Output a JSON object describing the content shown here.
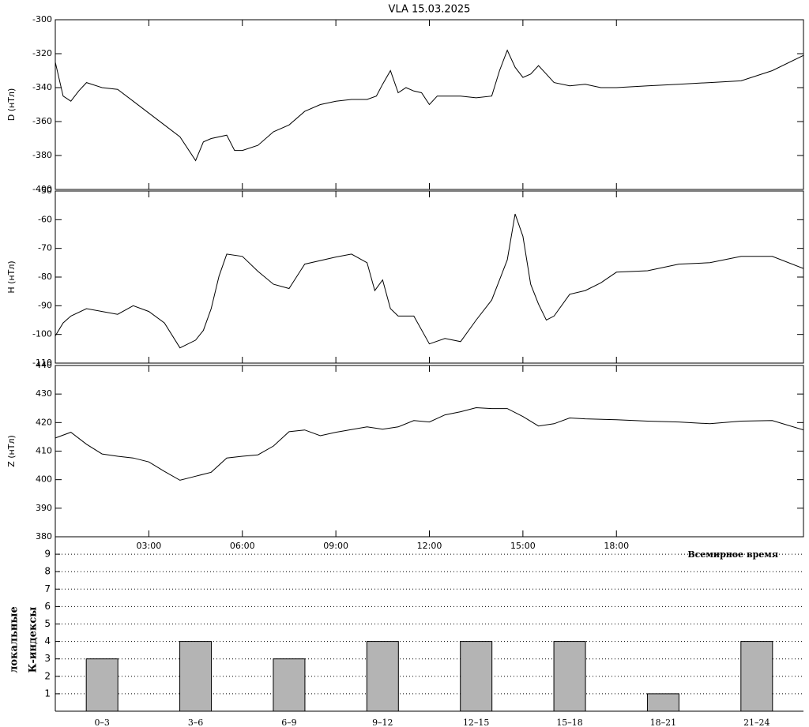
{
  "chart_data": [
    {
      "type": "line",
      "title": "VLA   15.03.2025",
      "ylabel": "D (нТл)",
      "x": [
        0,
        0.25,
        0.5,
        0.75,
        1,
        1.5,
        2,
        2.5,
        3,
        3.5,
        4,
        4.5,
        4.75,
        5,
        5.5,
        5.75,
        6,
        6.5,
        7,
        7.5,
        8,
        8.5,
        9,
        9.5,
        10,
        10.3,
        10.5,
        10.75,
        11,
        11.25,
        11.5,
        11.75,
        12,
        12.25,
        13,
        13.5,
        14,
        14.25,
        14.5,
        14.75,
        15,
        15.25,
        15.5,
        15.75,
        16,
        16.5,
        17,
        17.5,
        18,
        19,
        20,
        21,
        22,
        23,
        24
      ],
      "values": [
        -325,
        -345,
        -348,
        -342,
        -337,
        -340,
        -341,
        -348,
        -355,
        -362,
        -369,
        -383,
        -372,
        -370,
        -368,
        -377,
        -377,
        -374,
        -366,
        -362,
        -354,
        -350,
        -348,
        -347,
        -347,
        -345,
        -338,
        -330,
        -343,
        -340,
        -342,
        -343,
        -350,
        -345,
        -345,
        -346,
        -345,
        -330,
        -318,
        -328,
        -334,
        -332,
        -327,
        -332,
        -337,
        -339,
        -338,
        -340,
        -340,
        -339,
        -338,
        -337,
        -336,
        -330,
        -321
      ],
      "color": "#000000",
      "xlim": [
        0,
        24
      ],
      "ylim": [
        -400,
        -300
      ],
      "yticks": [
        -400,
        -380,
        -360,
        -340,
        -320,
        -300
      ]
    },
    {
      "type": "line",
      "ylabel": "H (нТл)",
      "x": [
        0,
        0.25,
        0.5,
        1,
        1.5,
        2,
        2.5,
        3,
        3.5,
        4,
        4.5,
        4.75,
        5,
        5.25,
        5.5,
        6,
        6.5,
        7,
        7.5,
        8,
        9,
        9.5,
        10,
        10.25,
        10.5,
        10.75,
        11,
        11.5,
        12,
        12.5,
        13,
        13.5,
        14,
        14.5,
        14.75,
        15,
        15.25,
        15.5,
        15.75,
        16,
        16.5,
        17,
        17.5,
        18,
        19,
        20,
        21,
        22,
        23,
        24
      ],
      "values": [
        -100.5,
        -96,
        -93.6,
        -91,
        -92,
        -93,
        -90,
        -92,
        -96,
        -104.7,
        -102,
        -98.6,
        -91,
        -79.7,
        -72,
        -72.8,
        -78,
        -82.5,
        -84,
        -75.5,
        -73,
        -72,
        -75,
        -84.7,
        -81,
        -91,
        -93.6,
        -93.6,
        -103.3,
        -101.4,
        -102.5,
        -95,
        -88,
        -74,
        -58,
        -65.8,
        -82.5,
        -89.4,
        -95,
        -93.6,
        -86,
        -84.7,
        -82,
        -78.3,
        -77.8,
        -75.5,
        -75,
        -72.8,
        -72.8,
        -77
      ],
      "color": "#000000",
      "xlim": [
        0,
        24
      ],
      "ylim": [
        -110,
        -50
      ],
      "yticks": [
        -110,
        -100,
        -90,
        -80,
        -70,
        -60,
        -50
      ]
    },
    {
      "type": "line",
      "ylabel": "Z (нТл)",
      "xlabel": "Всемирное время",
      "x": [
        0,
        0.5,
        1,
        1.5,
        2,
        2.5,
        3,
        3.5,
        4,
        4.5,
        5,
        5.5,
        6,
        6.5,
        7,
        7.5,
        8,
        8.5,
        9,
        10,
        10.5,
        11,
        11.5,
        12,
        12.5,
        13,
        13.5,
        14,
        14.5,
        15,
        15.5,
        16,
        16.5,
        17,
        18,
        19,
        20,
        21,
        22,
        23,
        24
      ],
      "values": [
        414.6,
        416.6,
        412.4,
        409,
        408.2,
        407.6,
        406.2,
        402.9,
        399.8,
        401.2,
        402.6,
        407.6,
        408.2,
        408.7,
        411.8,
        416.8,
        417.4,
        415.4,
        416.6,
        418.5,
        417.7,
        418.5,
        420.7,
        420.2,
        422.7,
        423.8,
        425.2,
        424.9,
        424.9,
        422.1,
        418.8,
        419.6,
        421.6,
        421.3,
        421,
        420.5,
        420.2,
        419.6,
        420.5,
        420.7,
        417.4
      ],
      "color": "#000000",
      "xlim": [
        0,
        24
      ],
      "ylim": [
        380,
        440
      ],
      "yticks": [
        380,
        390,
        400,
        410,
        420,
        430,
        440
      ],
      "xticks": [
        {
          "value": 3,
          "label": "03:00"
        },
        {
          "value": 6,
          "label": "06:00"
        },
        {
          "value": 9,
          "label": "09:00"
        },
        {
          "value": 12,
          "label": "12:00"
        },
        {
          "value": 15,
          "label": "15:00"
        },
        {
          "value": 18,
          "label": "18:00"
        }
      ]
    },
    {
      "type": "bar",
      "ylabel": [
        "локальные",
        "К-индексы"
      ],
      "categories": [
        "0–3",
        "3–6",
        "6–9",
        "9–12",
        "12–15",
        "15–18",
        "18–21",
        "21–24"
      ],
      "values": [
        3,
        4,
        3,
        4,
        4,
        4,
        1,
        4
      ],
      "color": "#b4b4b4",
      "ylim": [
        0,
        10
      ],
      "yticks": [
        1,
        2,
        3,
        4,
        5,
        6,
        7,
        8,
        9
      ],
      "grid": true
    }
  ]
}
